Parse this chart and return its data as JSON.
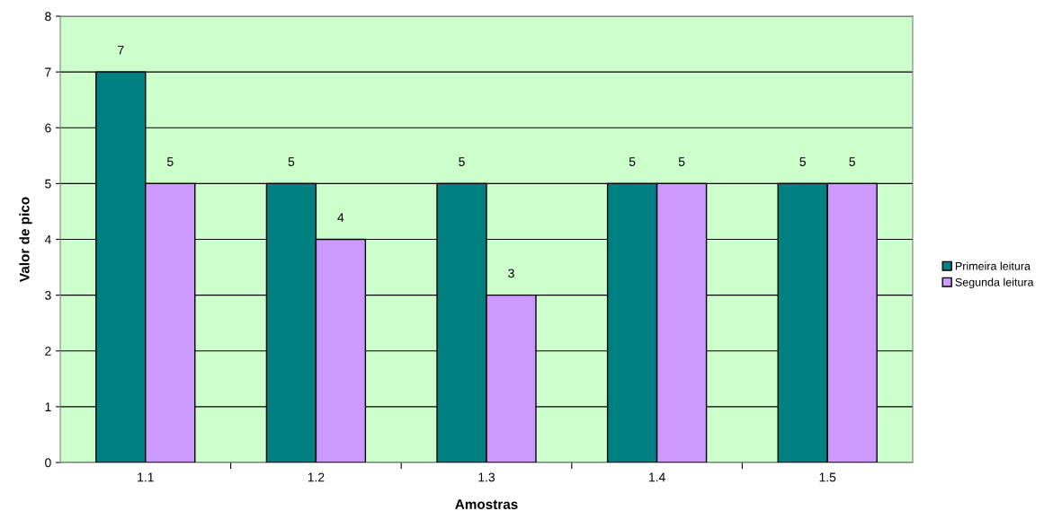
{
  "chart_data": {
    "type": "bar",
    "xlabel": "Amostras",
    "ylabel": "Valor de pico",
    "categories": [
      "1.1",
      "1.2",
      "1.3",
      "1.4",
      "1.5"
    ],
    "series": [
      {
        "name": "Primeira leitura",
        "color": "#008080",
        "values": [
          7,
          5,
          5,
          5,
          5
        ]
      },
      {
        "name": "Segunda leitura",
        "color": "#cc99ff",
        "values": [
          5,
          4,
          3,
          5,
          5
        ]
      }
    ],
    "ylim": [
      0,
      8
    ],
    "yticks": [
      0,
      1,
      2,
      3,
      4,
      5,
      6,
      7,
      8
    ],
    "grid": "y",
    "legend": "right",
    "data_labels": true
  }
}
